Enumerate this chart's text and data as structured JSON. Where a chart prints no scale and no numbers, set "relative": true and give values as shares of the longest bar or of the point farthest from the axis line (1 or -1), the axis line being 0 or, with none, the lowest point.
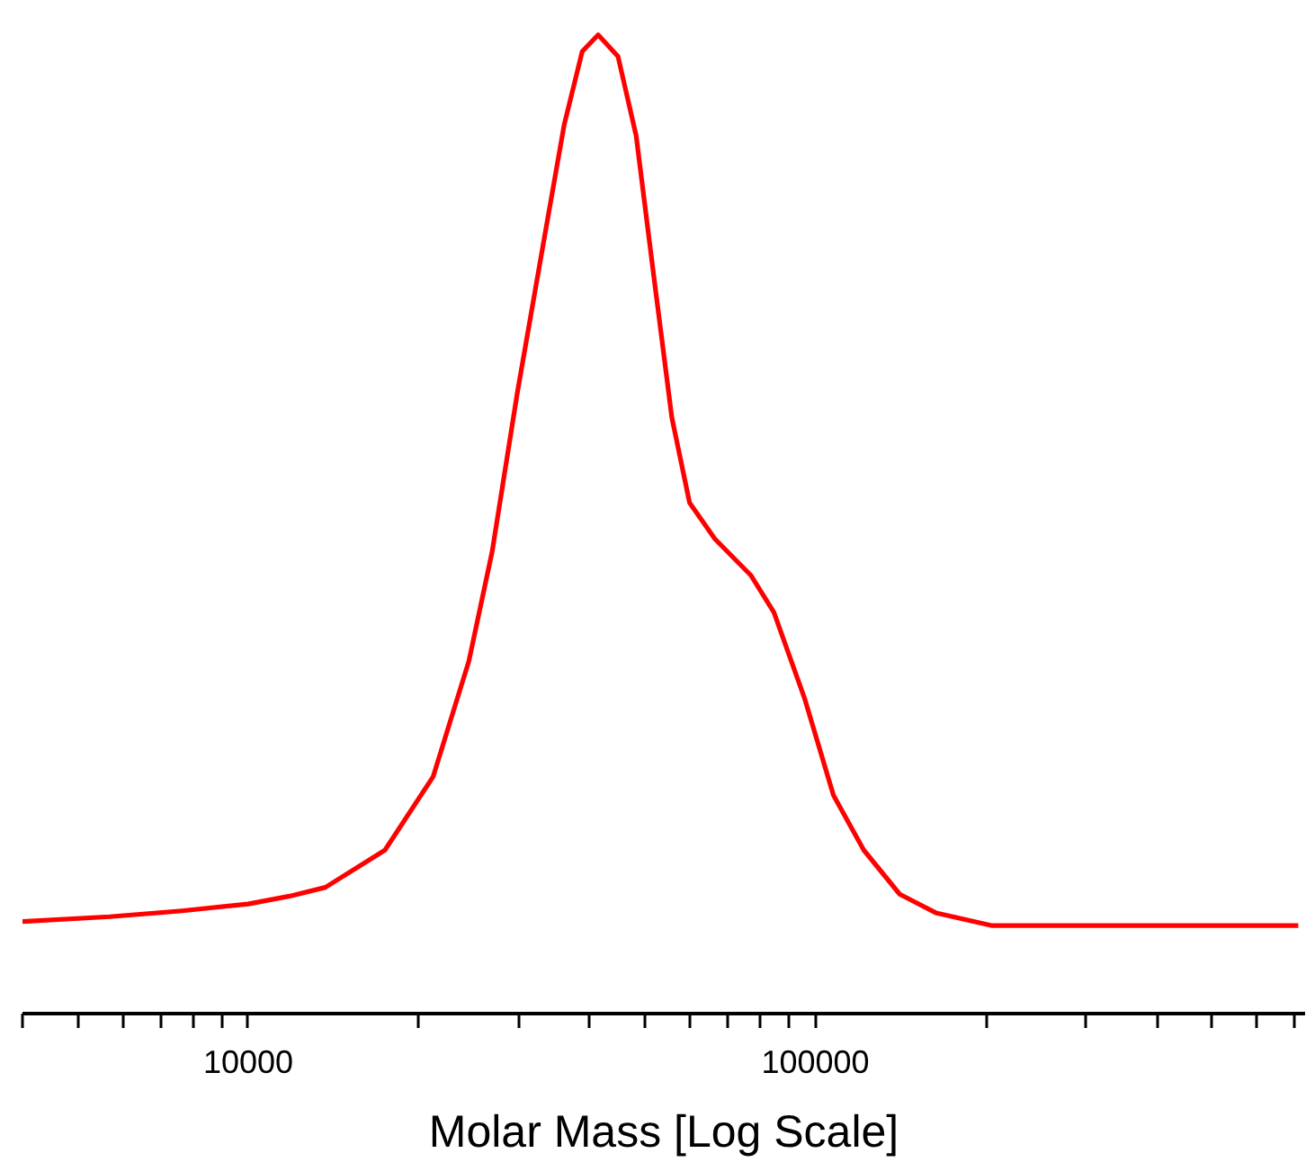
{
  "chart_data": {
    "type": "line",
    "xlabel": "Molar Mass [Log Scale]",
    "relative": true,
    "log": "x",
    "grid": false,
    "xlim": [
      4000,
      730000
    ],
    "xticks": [
      {
        "value": 4000,
        "label": null
      },
      {
        "value": 5000,
        "label": null
      },
      {
        "value": 6000,
        "label": null
      },
      {
        "value": 7000,
        "label": null
      },
      {
        "value": 8000,
        "label": null
      },
      {
        "value": 9000,
        "label": null
      },
      10000,
      {
        "value": 20000,
        "label": null
      },
      {
        "value": 30000,
        "label": null
      },
      {
        "value": 40000,
        "label": null
      },
      {
        "value": 50000,
        "label": null
      },
      {
        "value": 60000,
        "label": null
      },
      {
        "value": 70000,
        "label": null
      },
      {
        "value": 80000,
        "label": null
      },
      {
        "value": 90000,
        "label": null
      },
      100000,
      {
        "value": 200000,
        "label": null
      },
      {
        "value": 300000,
        "label": null
      },
      {
        "value": 400000,
        "label": null
      },
      {
        "value": 500000,
        "label": null
      },
      {
        "value": 600000,
        "label": null
      },
      {
        "value": 700000,
        "label": null
      }
    ],
    "series": [
      {
        "color": "#ff0000",
        "x": [
          4000,
          5700,
          7640,
          10000,
          11830,
          13680,
          17420,
          21180,
          24490,
          26920,
          29830,
          32800,
          36060,
          38800,
          41400,
          44870,
          48300,
          51900,
          55830,
          60000,
          66500,
          76900,
          84500,
          95700,
          107600,
          121700,
          140800,
          163000,
          204200,
          337500,
          710000
        ],
        "values": [
          0.094,
          0.099,
          0.105,
          0.112,
          0.12,
          0.129,
          0.167,
          0.242,
          0.36,
          0.472,
          0.635,
          0.772,
          0.908,
          0.983,
          1.0,
          0.978,
          0.897,
          0.753,
          0.609,
          0.522,
          0.485,
          0.448,
          0.41,
          0.322,
          0.223,
          0.167,
          0.122,
          0.103,
          0.09,
          0.09,
          0.09
        ]
      }
    ]
  }
}
